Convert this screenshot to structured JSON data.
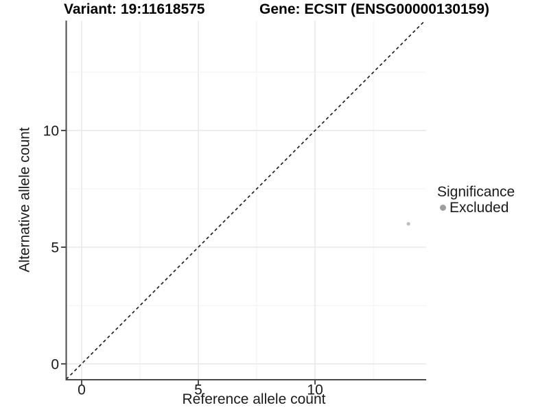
{
  "header": {
    "variant_title": "Variant: 19:11618575",
    "gene_title": "Gene: ECSIT (ENSG00000130159)"
  },
  "axes": {
    "x": {
      "label": "Reference allele count",
      "tick_labels": [
        "0",
        "5",
        "10"
      ]
    },
    "y": {
      "label": "Alternative allele count",
      "tick_labels": [
        "0",
        "5",
        "10"
      ]
    }
  },
  "legend": {
    "title": "Significance",
    "items": [
      {
        "label": "Excluded",
        "color": "#9e9e9e"
      }
    ]
  },
  "chart_data": {
    "type": "scatter",
    "title": "Variant: 19:11618575 | Gene: ECSIT (ENSG00000130159)",
    "xlabel": "Reference allele count",
    "ylabel": "Alternative allele count",
    "xlim": [
      -0.66,
      14.76
    ],
    "ylim": [
      -0.68,
      14.71
    ],
    "x_major_ticks": [
      0,
      5,
      10
    ],
    "y_major_ticks": [
      0,
      5,
      10
    ],
    "x_minor_gridlines": [
      2.5,
      7.5,
      12.5
    ],
    "y_minor_gridlines": [
      2.5,
      7.5,
      12.5
    ],
    "grid": true,
    "legend_position": "right-center",
    "identity_line": {
      "type": "y=x",
      "style": "dashed"
    },
    "series": [
      {
        "name": "Excluded",
        "points": [
          {
            "x": 14,
            "y": 6
          }
        ]
      }
    ]
  },
  "colors": {
    "axis_line": "#4a4a4a",
    "tick_mark": "#4a4a4a",
    "tick_text": "#1a1a1a",
    "major_grid": "#ebebeb",
    "minor_grid": "#f5f5f5",
    "dashed_line": "#141414",
    "point": "#bdbdbd",
    "legend_key": "#9e9e9e",
    "background": "#ffffff"
  }
}
